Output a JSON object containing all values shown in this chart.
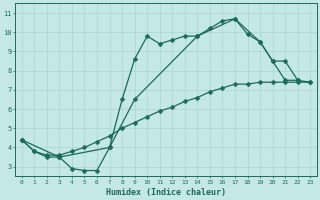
{
  "xlabel": "Humidex (Indice chaleur)",
  "bg_color": "#c4e8e4",
  "line_color": "#1a6b5a",
  "grid_color": "#a8d4cc",
  "xlim": [
    -0.5,
    23.5
  ],
  "ylim": [
    2.5,
    11.5
  ],
  "xticks": [
    0,
    1,
    2,
    3,
    4,
    5,
    6,
    7,
    8,
    9,
    10,
    11,
    12,
    13,
    14,
    15,
    16,
    17,
    18,
    19,
    20,
    21,
    22,
    23
  ],
  "yticks": [
    3,
    4,
    5,
    6,
    7,
    8,
    9,
    10,
    11
  ],
  "curve1_x": [
    0,
    1,
    2,
    3,
    4,
    5,
    6,
    7,
    8,
    9,
    10,
    11,
    12,
    13,
    14,
    15,
    16,
    17,
    18,
    19,
    20,
    21,
    22
  ],
  "curve1_y": [
    4.4,
    3.8,
    3.5,
    3.5,
    2.9,
    2.8,
    2.8,
    4.0,
    6.5,
    8.6,
    9.8,
    9.4,
    9.6,
    9.8,
    9.8,
    10.2,
    10.6,
    10.7,
    9.9,
    9.5,
    8.5,
    7.5,
    7.5
  ],
  "curve2_x": [
    0,
    1,
    2,
    3,
    4,
    5,
    6,
    7,
    8,
    9,
    10,
    11,
    12,
    13,
    14,
    15,
    16,
    17,
    18,
    19,
    20,
    21,
    22,
    23
  ],
  "curve2_y": [
    4.4,
    3.8,
    3.6,
    3.6,
    3.8,
    4.0,
    4.3,
    4.6,
    5.0,
    5.3,
    5.6,
    5.9,
    6.1,
    6.4,
    6.6,
    6.9,
    7.1,
    7.3,
    7.3,
    7.4,
    7.4,
    7.4,
    7.4,
    7.4
  ],
  "curve3_x": [
    0,
    3,
    7,
    9,
    14,
    17,
    19,
    20,
    21,
    22,
    23
  ],
  "curve3_y": [
    4.4,
    3.5,
    4.0,
    6.5,
    9.8,
    10.7,
    9.5,
    8.5,
    8.5,
    7.5,
    7.4
  ]
}
